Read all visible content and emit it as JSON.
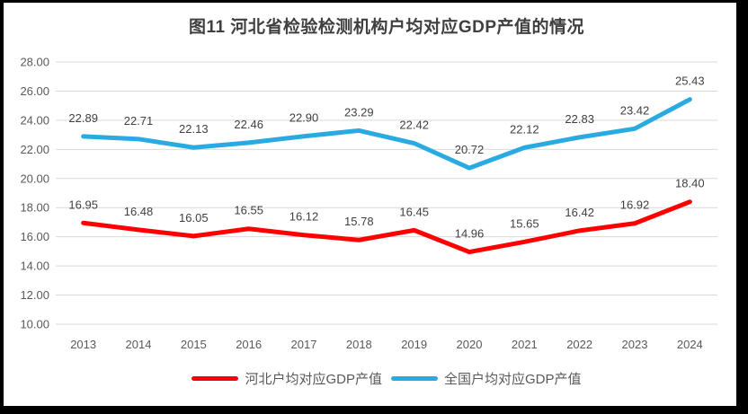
{
  "chart_data": {
    "type": "line",
    "title": "图11 河北省检验检测机构户均对应GDP产值的情况",
    "categories": [
      "2013",
      "2014",
      "2015",
      "2016",
      "2017",
      "2018",
      "2019",
      "2020",
      "2021",
      "2022",
      "2023",
      "2024"
    ],
    "series": [
      {
        "name": "河北户均对应GDP产值",
        "color": "#ff0000",
        "values": [
          16.95,
          16.48,
          16.05,
          16.55,
          16.12,
          15.78,
          16.45,
          14.96,
          15.65,
          16.42,
          16.92,
          18.4
        ]
      },
      {
        "name": "全国户均对应GDP产值",
        "color": "#29abe2",
        "values": [
          22.89,
          22.71,
          22.13,
          22.46,
          22.9,
          23.29,
          22.42,
          20.72,
          22.12,
          22.83,
          23.42,
          25.43
        ]
      }
    ],
    "ylim": [
      10,
      28
    ],
    "ytick_step": 2,
    "ytick_labels": [
      "10.00",
      "12.00",
      "14.00",
      "16.00",
      "18.00",
      "20.00",
      "22.00",
      "24.00",
      "26.00",
      "28.00"
    ],
    "grid": true,
    "gridline_color": "#d9d9d9",
    "data_labels": true,
    "legend_position": "bottom"
  }
}
